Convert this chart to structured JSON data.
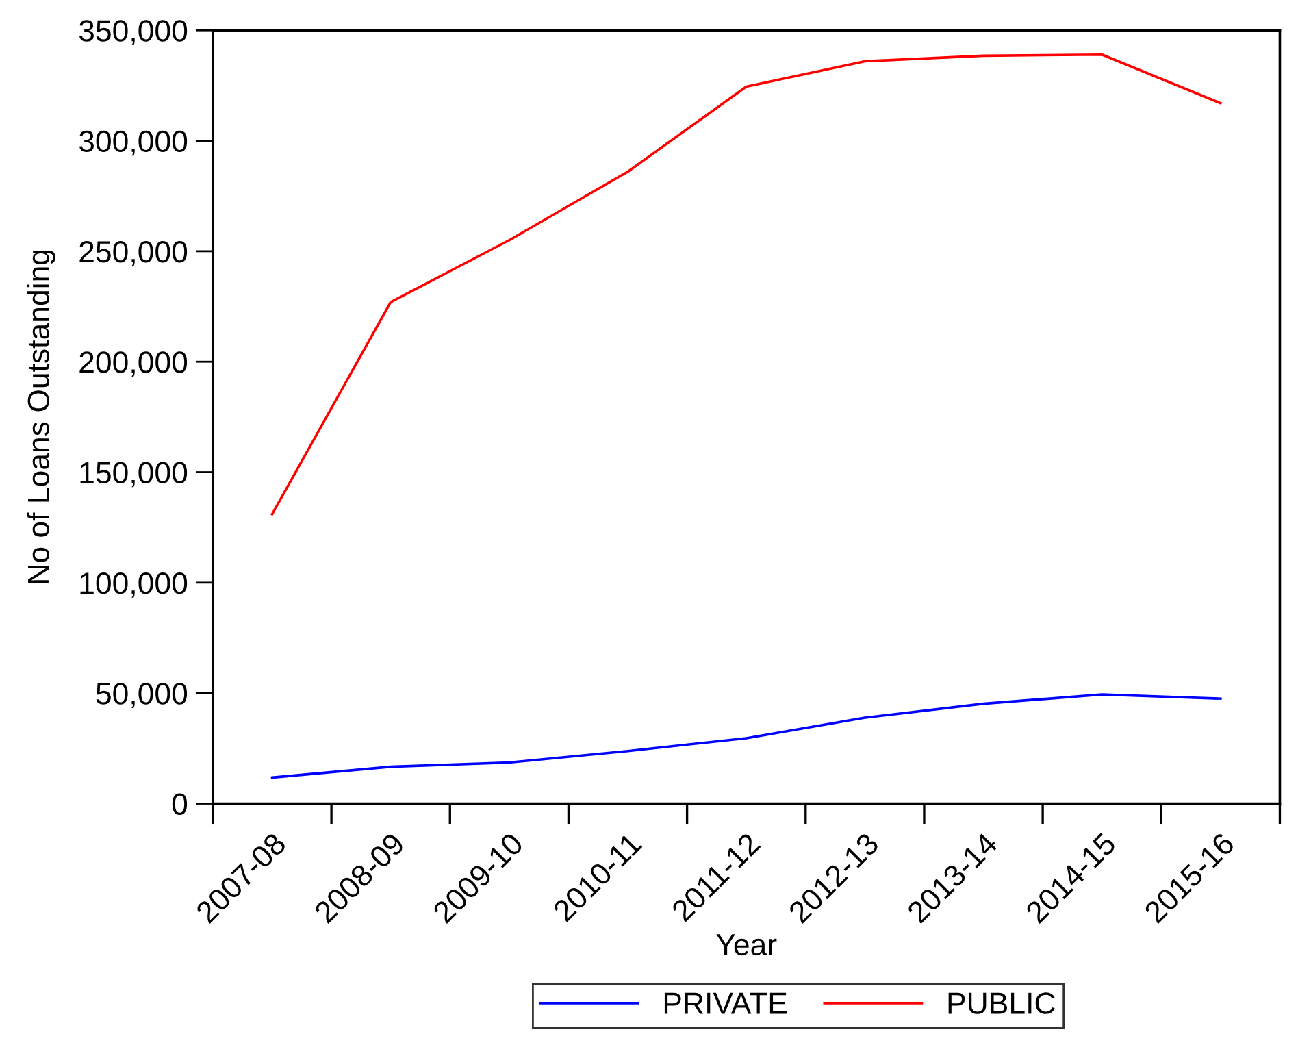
{
  "chart_data": {
    "type": "line",
    "xlabel": "Year",
    "ylabel": "No of Loans Outstanding",
    "categories": [
      "2007-08",
      "2008-09",
      "2009-10",
      "2010-11",
      "2011-12",
      "2012-13",
      "2013-14",
      "2014-15",
      "2015-16"
    ],
    "series": [
      {
        "name": "PRIVATE",
        "color": "#0000ff",
        "values": [
          11800,
          16700,
          18600,
          23800,
          29600,
          38900,
          45200,
          49400,
          47500
        ]
      },
      {
        "name": "PUBLIC",
        "color": "#ff0000",
        "values": [
          131000,
          227000,
          255000,
          286000,
          324500,
          336000,
          338500,
          339000,
          317000
        ]
      }
    ],
    "ylim": [
      0,
      350000
    ],
    "yticks": [
      0,
      {
        "value": 50000,
        "label": "50,000"
      },
      {
        "value": 100000,
        "label": "100,000"
      },
      {
        "value": 150000,
        "label": "150,000"
      },
      {
        "value": 200000,
        "label": "200,000"
      },
      {
        "value": 250000,
        "label": "250,000"
      },
      {
        "value": 300000,
        "label": "300,000"
      },
      {
        "value": 350000,
        "label": "350,000"
      }
    ],
    "grid": false,
    "legend": "bottom",
    "marker": "none",
    "line_style": "solid"
  }
}
